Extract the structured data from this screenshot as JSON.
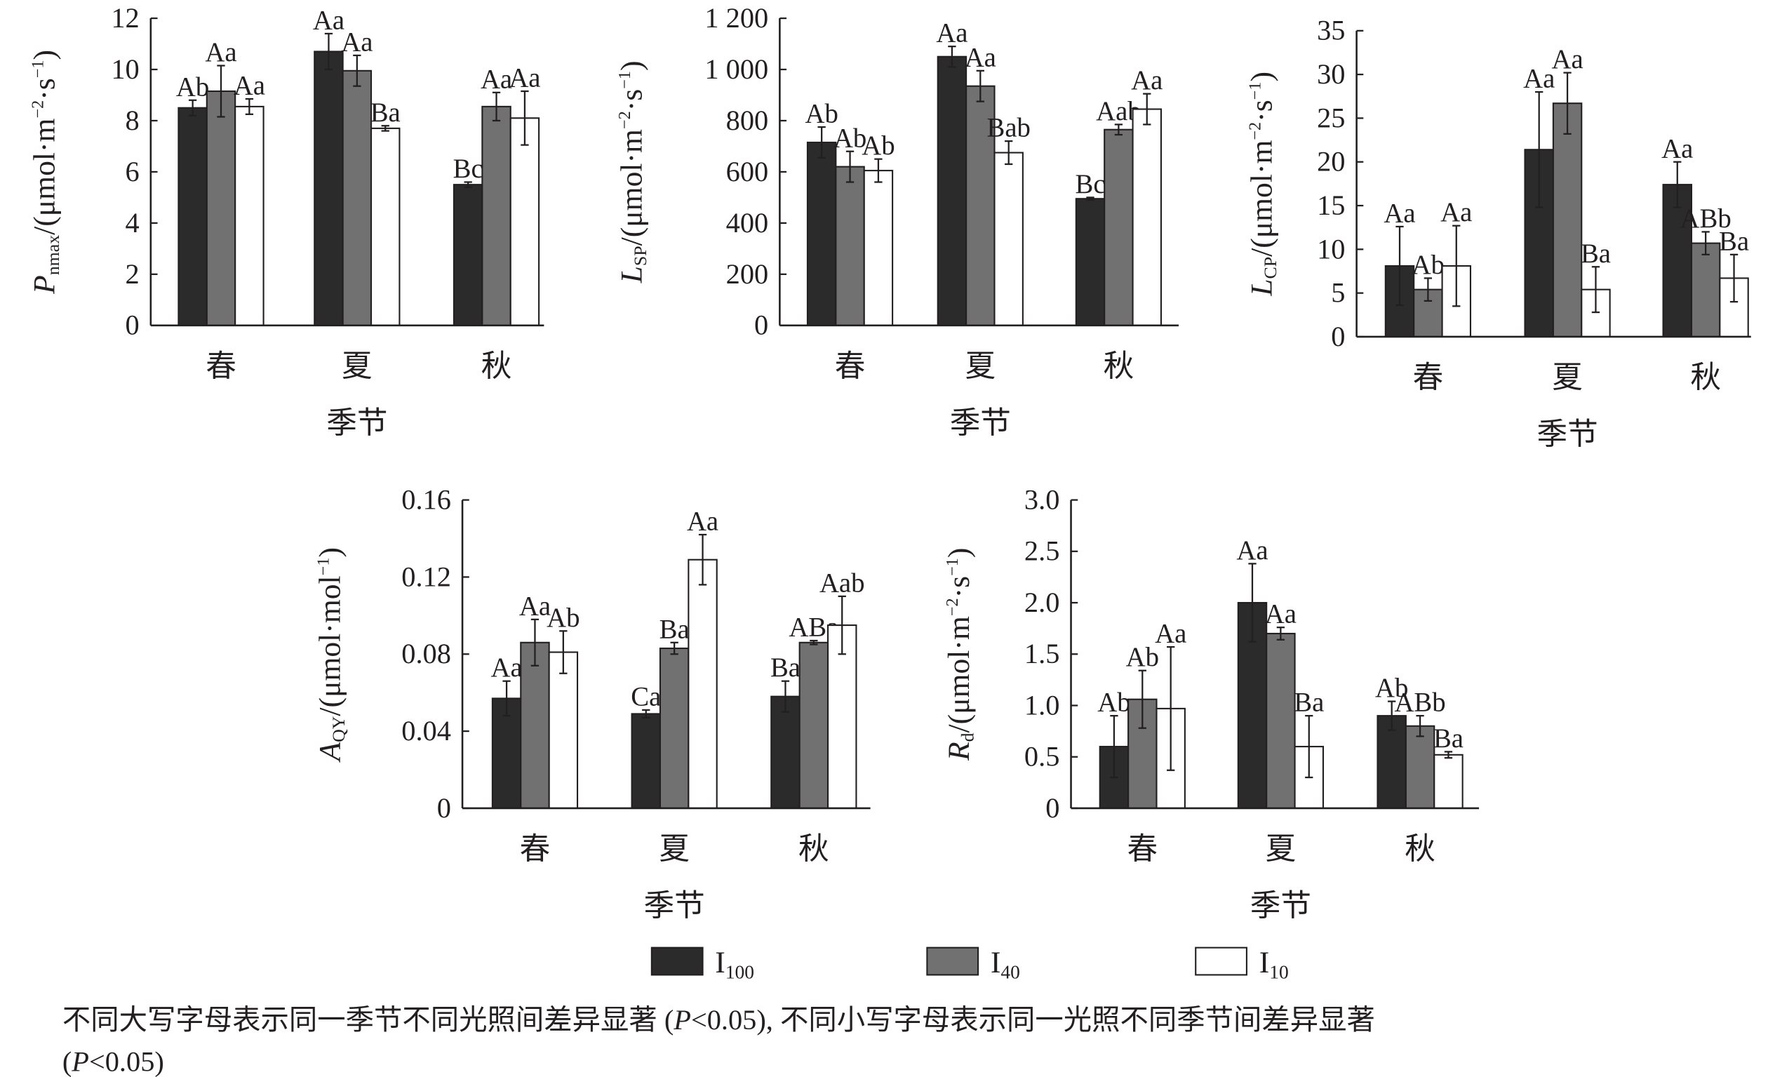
{
  "chart_data": {
    "type": "bar",
    "categories": [
      "春",
      "夏",
      "秋"
    ],
    "xlabel": "季节",
    "legend": [
      {
        "name": "I",
        "sub": "100",
        "color": "#2b2b2b"
      },
      {
        "name": "I",
        "sub": "40",
        "color": "#717171"
      },
      {
        "name": "I",
        "sub": "10",
        "color": "#ffffff"
      }
    ],
    "legend_placement": "bottom-center",
    "panels": [
      {
        "ylabel": {
          "sym": "P",
          "sub": "nmax",
          "unit": "/(μmol·m",
          "exp1": "−2",
          "mid": "·s",
          "exp2": "−1",
          "end": ")"
        },
        "ylim": [
          0,
          12
        ],
        "ticks": [
          "0",
          "2",
          "4",
          "6",
          "8",
          "10",
          "12"
        ],
        "tick_values": [
          0,
          2,
          4,
          6,
          8,
          10,
          12
        ],
        "series": [
          {
            "values": [
              8.5,
              10.7,
              5.5
            ],
            "errors": [
              0.3,
              0.7,
              0.1
            ],
            "letters": [
              "Ab",
              "Aa",
              "Bc"
            ]
          },
          {
            "values": [
              9.15,
              9.95,
              8.55
            ],
            "errors": [
              1.0,
              0.6,
              0.55
            ],
            "letters": [
              "Aa",
              "Aa",
              "Aa"
            ]
          },
          {
            "values": [
              8.55,
              7.7,
              8.1
            ],
            "errors": [
              0.3,
              0.1,
              1.05
            ],
            "letters": [
              "Aa",
              "Ba",
              "Aa"
            ]
          }
        ]
      },
      {
        "ylabel": {
          "sym": "L",
          "sub": "SP",
          "unit": "/(μmol·m",
          "exp1": "−2",
          "mid": "·s",
          "exp2": "−1",
          "end": ")"
        },
        "ylim": [
          0,
          1200
        ],
        "ticks": [
          "0",
          "200",
          "400",
          "600",
          "800",
          "1 000",
          "1 200"
        ],
        "tick_values": [
          0,
          200,
          400,
          600,
          800,
          1000,
          1200
        ],
        "series": [
          {
            "values": [
              715,
              1050,
              495
            ],
            "errors": [
              60,
              40,
              5
            ],
            "letters": [
              "Ab",
              "Aa",
              "Bc"
            ]
          },
          {
            "values": [
              620,
              935,
              765
            ],
            "errors": [
              60,
              60,
              20
            ],
            "letters": [
              "Ab",
              "Aa",
              "Aab"
            ]
          },
          {
            "values": [
              605,
              675,
              845
            ],
            "errors": [
              45,
              45,
              60
            ],
            "letters": [
              "Ab",
              "Bab",
              "Aa"
            ]
          }
        ]
      },
      {
        "ylabel": {
          "sym": "L",
          "sub": "CP",
          "unit": "/(μmol·m",
          "exp1": "−2",
          "mid": "·s",
          "exp2": "−1",
          "end": ")"
        },
        "ylim": [
          0,
          35
        ],
        "ticks": [
          "0",
          "5",
          "10",
          "15",
          "20",
          "25",
          "30",
          "35"
        ],
        "tick_values": [
          0,
          5,
          10,
          15,
          20,
          25,
          30,
          35
        ],
        "series": [
          {
            "values": [
              8.1,
              21.4,
              17.4
            ],
            "errors": [
              4.5,
              6.6,
              2.6
            ],
            "letters": [
              "Aa",
              "Aa",
              "Aa"
            ]
          },
          {
            "values": [
              5.4,
              26.7,
              10.7
            ],
            "errors": [
              1.3,
              3.5,
              1.3
            ],
            "letters": [
              "Ab",
              "Aa",
              "ABb"
            ]
          },
          {
            "values": [
              8.1,
              5.4,
              6.7
            ],
            "errors": [
              4.6,
              2.6,
              2.7
            ],
            "letters": [
              "Aa",
              "Ba",
              "Ba"
            ]
          }
        ]
      },
      {
        "ylabel": {
          "sym": "A",
          "sub": "QY",
          "unit": "/(μmol·mol",
          "exp1": "−1",
          "mid": "",
          "exp2": "",
          "end": ")"
        },
        "ylim": [
          0,
          0.16
        ],
        "ticks": [
          "0",
          "0.04",
          "0.08",
          "0.12",
          "0.16"
        ],
        "tick_values": [
          0,
          0.04,
          0.08,
          0.12,
          0.16
        ],
        "series": [
          {
            "values": [
              0.057,
              0.049,
              0.058
            ],
            "errors": [
              0.009,
              0.002,
              0.008
            ],
            "letters": [
              "Aa",
              "Ca",
              "Ba"
            ]
          },
          {
            "values": [
              0.086,
              0.083,
              0.086
            ],
            "errors": [
              0.012,
              0.003,
              0.001
            ],
            "letters": [
              "Aa",
              "Ba",
              "ABa"
            ]
          },
          {
            "values": [
              0.081,
              0.129,
              0.095
            ],
            "errors": [
              0.011,
              0.013,
              0.015
            ],
            "letters": [
              "Ab",
              "Aa",
              "Aab"
            ]
          }
        ]
      },
      {
        "ylabel": {
          "sym": "R",
          "sub": "d",
          "unit": "/(μmol·m",
          "exp1": "−2",
          "mid": "·s",
          "exp2": "−1",
          "end": ")"
        },
        "ylim": [
          0,
          3.0
        ],
        "ticks": [
          "0",
          "0.5",
          "1.0",
          "1.5",
          "2.0",
          "2.5",
          "3.0"
        ],
        "tick_values": [
          0,
          0.5,
          1,
          1.5,
          2,
          2.5,
          3
        ],
        "series": [
          {
            "values": [
              0.6,
              2.0,
              0.9
            ],
            "errors": [
              0.3,
              0.38,
              0.14
            ],
            "letters": [
              "Ab",
              "Aa",
              "Ab"
            ]
          },
          {
            "values": [
              1.06,
              1.7,
              0.8
            ],
            "errors": [
              0.28,
              0.06,
              0.1
            ],
            "letters": [
              "Ab",
              "Aa",
              "ABb"
            ]
          },
          {
            "values": [
              0.97,
              0.6,
              0.52
            ],
            "errors": [
              0.6,
              0.3,
              0.03
            ],
            "letters": [
              "Aa",
              "Ba",
              "Ba"
            ]
          }
        ]
      }
    ]
  },
  "caption": {
    "line1_a": "不同大写字母表示同一季节不同光照间差异显著 (",
    "p": "P",
    "line1_b": "<0.05), 不同小写字母表示同一光照不同季节间差异显著",
    "line2_a": "(",
    "line2_b": "<0.05)"
  }
}
